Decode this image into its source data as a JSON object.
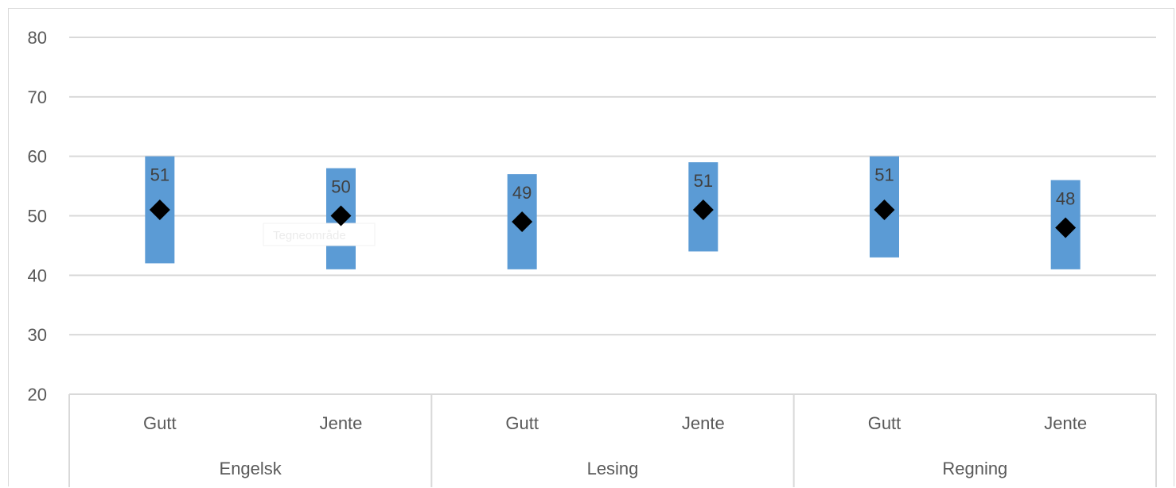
{
  "chart_data": {
    "type": "bar",
    "title": "",
    "xlabel": "",
    "ylabel": "",
    "ylim": [
      20,
      80
    ],
    "yticks": [
      20,
      30,
      40,
      50,
      60,
      70,
      80
    ],
    "grid": true,
    "legend": "none",
    "groups": [
      {
        "name": "Engelsk",
        "categories": [
          "Gutt",
          "Jente"
        ]
      },
      {
        "name": "Lesing",
        "categories": [
          "Gutt",
          "Jente"
        ]
      },
      {
        "name": "Regning",
        "categories": [
          "Gutt",
          "Jente"
        ]
      }
    ],
    "categories": [
      "Gutt",
      "Jente",
      "Gutt",
      "Jente",
      "Gutt",
      "Jente"
    ],
    "series": [
      {
        "role": "range_low",
        "values": [
          42,
          41,
          41,
          44,
          43,
          41
        ]
      },
      {
        "role": "range_high",
        "values": [
          60,
          58,
          57,
          59,
          60,
          56
        ]
      },
      {
        "role": "value",
        "values": [
          51,
          50,
          49,
          51,
          51,
          48
        ]
      }
    ],
    "data_labels": [
      "51",
      "50",
      "49",
      "51",
      "51",
      "48"
    ],
    "colors": {
      "range_bar": "#5b9bd5",
      "marker": "#000000",
      "grid": "#d9d9d9",
      "text": "#595959"
    },
    "ghost_text": "Tegneområde"
  }
}
